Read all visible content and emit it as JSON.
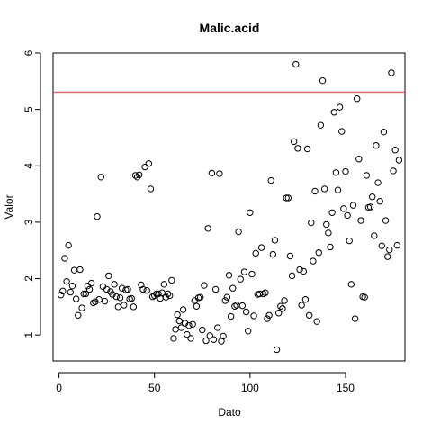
{
  "chart_data": {
    "type": "scatter",
    "title": "Malic.acid",
    "xlabel": "Dato",
    "ylabel": "Valor",
    "xlim": [
      -3.1,
      181.1
    ],
    "ylim": [
      0.54,
      6.0
    ],
    "xticks": [
      0,
      50,
      100,
      150
    ],
    "yticks": [
      1,
      2,
      3,
      4,
      5,
      6
    ],
    "reference_line": {
      "y": 5.31,
      "color": "#e8383b"
    },
    "grid": false,
    "x": [
      1,
      2,
      3,
      4,
      5,
      6,
      7,
      8,
      9,
      10,
      11,
      12,
      13,
      14,
      15,
      16,
      17,
      18,
      19,
      20,
      21,
      22,
      23,
      24,
      25,
      26,
      27,
      28,
      29,
      30,
      31,
      32,
      33,
      34,
      35,
      36,
      37,
      38,
      39,
      40,
      41,
      42,
      43,
      44,
      45,
      46,
      47,
      48,
      49,
      50,
      51,
      52,
      53,
      54,
      55,
      56,
      57,
      58,
      59,
      60,
      61,
      62,
      63,
      64,
      65,
      66,
      67,
      68,
      69,
      70,
      71,
      72,
      73,
      74,
      75,
      76,
      77,
      78,
      79,
      80,
      81,
      82,
      83,
      84,
      85,
      86,
      87,
      88,
      89,
      90,
      91,
      92,
      93,
      94,
      95,
      96,
      97,
      98,
      99,
      100,
      101,
      102,
      103,
      104,
      105,
      106,
      107,
      108,
      109,
      110,
      111,
      112,
      113,
      114,
      115,
      116,
      117,
      118,
      119,
      120,
      121,
      122,
      123,
      124,
      125,
      126,
      127,
      128,
      129,
      130,
      131,
      132,
      133,
      134,
      135,
      136,
      137,
      138,
      139,
      140,
      141,
      142,
      143,
      144,
      145,
      146,
      147,
      148,
      149,
      150,
      151,
      152,
      153,
      154,
      155,
      156,
      157,
      158,
      159,
      160,
      161,
      162,
      163,
      164,
      165,
      166,
      167,
      168,
      169,
      170,
      171,
      172,
      173,
      174,
      175,
      176,
      177,
      178
    ],
    "y": [
      1.71,
      1.78,
      2.36,
      1.95,
      2.59,
      1.76,
      1.87,
      2.15,
      1.64,
      1.35,
      2.16,
      1.48,
      1.73,
      1.73,
      1.87,
      1.81,
      1.92,
      1.57,
      1.59,
      3.1,
      1.63,
      3.8,
      1.86,
      1.6,
      1.81,
      2.05,
      1.77,
      1.72,
      1.9,
      1.68,
      1.5,
      1.66,
      1.83,
      1.53,
      1.8,
      1.81,
      1.64,
      1.65,
      1.5,
      3.83,
      3.8,
      3.84,
      1.89,
      1.81,
      3.98,
      1.79,
      4.04,
      3.59,
      1.68,
      1.7,
      1.73,
      1.73,
      1.65,
      1.75,
      1.9,
      1.67,
      1.73,
      1.7,
      1.97,
      0.94,
      1.1,
      1.36,
      1.25,
      1.13,
      1.45,
      1.21,
      1.01,
      1.17,
      0.94,
      1.19,
      1.61,
      1.51,
      1.66,
      1.67,
      1.09,
      1.88,
      0.9,
      2.89,
      0.99,
      3.87,
      0.92,
      1.81,
      1.13,
      3.86,
      0.89,
      0.98,
      1.61,
      1.67,
      2.06,
      1.33,
      1.83,
      1.51,
      1.53,
      2.83,
      1.99,
      1.52,
      2.12,
      1.41,
      1.07,
      3.17,
      2.08,
      1.34,
      2.45,
      1.72,
      1.73,
      2.55,
      1.73,
      1.75,
      1.29,
      1.35,
      3.74,
      2.43,
      2.68,
      0.74,
      1.39,
      1.51,
      1.47,
      1.61,
      3.43,
      3.43,
      2.4,
      2.05,
      4.43,
      5.8,
      4.31,
      2.16,
      1.53,
      2.13,
      1.63,
      4.3,
      1.35,
      2.99,
      2.31,
      3.55,
      1.24,
      2.46,
      4.72,
      5.51,
      3.59,
      2.96,
      2.81,
      2.56,
      3.17,
      4.95,
      3.88,
      3.57,
      5.04,
      4.61,
      3.24,
      3.9,
      3.12,
      2.67,
      1.9,
      3.3,
      1.29,
      5.19,
      4.12,
      3.03,
      1.68,
      1.67,
      3.83,
      3.26,
      3.27,
      3.45,
      2.76,
      4.36,
      3.7,
      3.37,
      2.58,
      4.6,
      3.03,
      2.39,
      2.51,
      5.65,
      3.91,
      4.28,
      2.59,
      4.1
    ]
  }
}
